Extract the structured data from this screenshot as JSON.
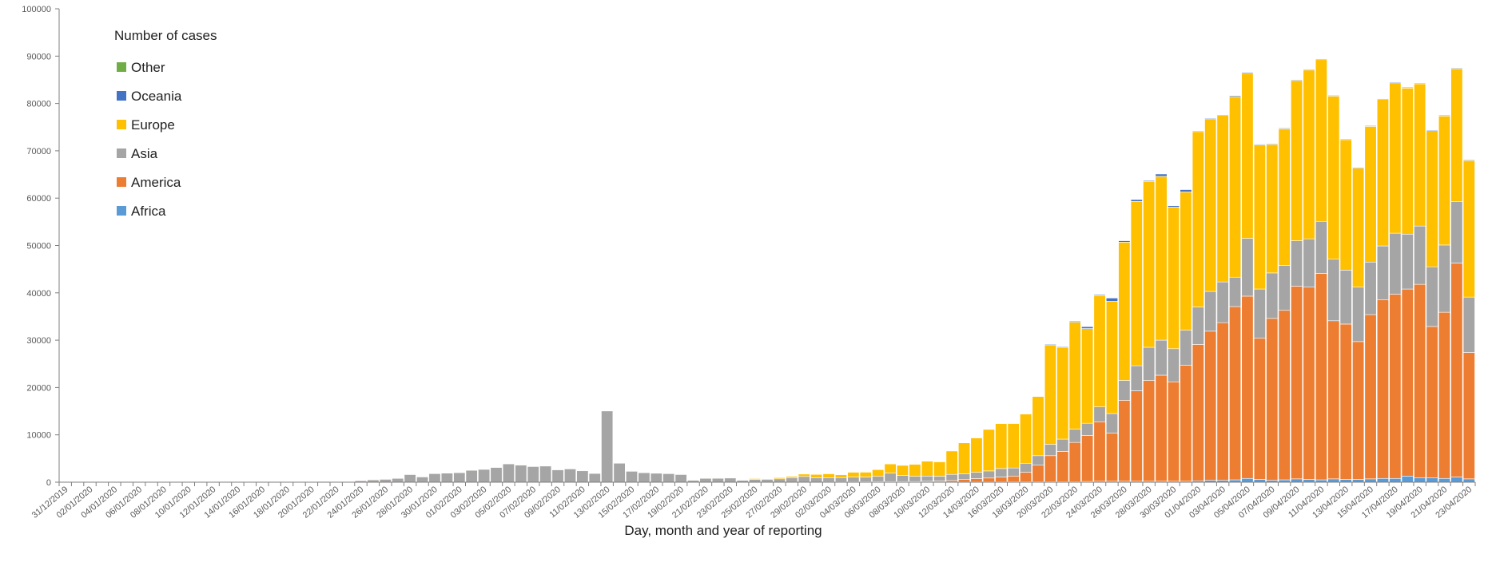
{
  "chart_data": {
    "type": "bar",
    "stacked": true,
    "title": "",
    "xlabel": "Day, month and year of reporting",
    "ylabel": "",
    "ylim": [
      0,
      100000
    ],
    "yticks": [
      0,
      10000,
      20000,
      30000,
      40000,
      50000,
      60000,
      70000,
      80000,
      90000,
      100000
    ],
    "grid": false,
    "legend": {
      "title": "Number of cases",
      "placement": "top-left",
      "order": [
        "Other",
        "Oceania",
        "Europe",
        "Asia",
        "America",
        "Africa"
      ]
    },
    "tick_every": 2,
    "categories": [
      "31/12/2019",
      "01/01/2020",
      "02/01/2020",
      "03/01/2020",
      "04/01/2020",
      "05/01/2020",
      "06/01/2020",
      "07/01/2020",
      "08/01/2020",
      "09/01/2020",
      "10/01/2020",
      "11/01/2020",
      "12/01/2020",
      "13/01/2020",
      "14/01/2020",
      "15/01/2020",
      "16/01/2020",
      "17/01/2020",
      "18/01/2020",
      "19/01/2020",
      "20/01/2020",
      "21/01/2020",
      "22/01/2020",
      "23/01/2020",
      "24/01/2020",
      "25/01/2020",
      "26/01/2020",
      "27/01/2020",
      "28/01/2020",
      "29/01/2020",
      "30/01/2020",
      "31/01/2020",
      "01/02/2020",
      "02/02/2020",
      "03/02/2020",
      "04/02/2020",
      "05/02/2020",
      "06/02/2020",
      "07/02/2020",
      "08/02/2020",
      "09/02/2020",
      "10/02/2020",
      "11/02/2020",
      "12/02/2020",
      "13/02/2020",
      "14/02/2020",
      "15/02/2020",
      "16/02/2020",
      "17/02/2020",
      "18/02/2020",
      "19/02/2020",
      "20/02/2020",
      "21/02/2020",
      "22/02/2020",
      "23/02/2020",
      "24/02/2020",
      "25/02/2020",
      "26/02/2020",
      "27/02/2020",
      "28/02/2020",
      "29/02/2020",
      "01/03/2020",
      "02/03/2020",
      "03/03/2020",
      "04/03/2020",
      "05/03/2020",
      "06/03/2020",
      "07/03/2020",
      "08/03/2020",
      "09/03/2020",
      "10/03/2020",
      "11/03/2020",
      "12/03/2020",
      "13/03/2020",
      "14/03/2020",
      "15/03/2020",
      "16/03/2020",
      "17/03/2020",
      "18/03/2020",
      "19/03/2020",
      "20/03/2020",
      "21/03/2020",
      "22/03/2020",
      "23/03/2020",
      "24/03/2020",
      "25/03/2020",
      "26/03/2020",
      "27/03/2020",
      "28/03/2020",
      "29/03/2020",
      "30/03/2020",
      "31/03/2020",
      "01/04/2020",
      "02/04/2020",
      "03/04/2020",
      "04/04/2020",
      "05/04/2020",
      "06/04/2020",
      "07/04/2020",
      "08/04/2020",
      "09/04/2020",
      "10/04/2020",
      "11/04/2020",
      "12/04/2020",
      "13/04/2020",
      "14/04/2020",
      "15/04/2020",
      "16/04/2020",
      "17/04/2020",
      "18/04/2020",
      "19/04/2020",
      "20/04/2020",
      "21/04/2020",
      "22/04/2020",
      "23/04/2020"
    ],
    "series": [
      {
        "name": "Africa",
        "color": "#5b9bd5",
        "values": [
          0,
          0,
          0,
          0,
          0,
          0,
          0,
          0,
          0,
          0,
          0,
          0,
          0,
          0,
          0,
          0,
          0,
          0,
          0,
          0,
          0,
          0,
          0,
          0,
          0,
          0,
          0,
          0,
          0,
          0,
          0,
          0,
          0,
          0,
          0,
          0,
          0,
          0,
          0,
          0,
          0,
          0,
          0,
          0,
          0,
          1,
          0,
          0,
          0,
          0,
          0,
          0,
          0,
          0,
          0,
          0,
          0,
          0,
          0,
          0,
          0,
          10,
          10,
          20,
          20,
          20,
          30,
          30,
          30,
          40,
          50,
          60,
          50,
          60,
          80,
          80,
          90,
          100,
          100,
          100,
          100,
          100,
          100,
          150,
          200,
          200,
          200,
          200,
          200,
          200,
          200,
          200,
          300,
          400,
          400,
          500,
          800,
          600,
          400,
          500,
          700,
          600,
          500,
          700,
          600,
          600,
          700,
          800,
          800,
          1300,
          900,
          900,
          800,
          1100,
          700
        ]
      },
      {
        "name": "America",
        "color": "#ed7d31",
        "values": [
          0,
          0,
          0,
          0,
          0,
          0,
          0,
          0,
          0,
          0,
          0,
          0,
          0,
          0,
          0,
          0,
          0,
          0,
          0,
          0,
          0,
          1,
          0,
          0,
          1,
          1,
          1,
          0,
          0,
          0,
          0,
          2,
          0,
          0,
          0,
          0,
          0,
          0,
          0,
          0,
          0,
          0,
          0,
          0,
          0,
          0,
          0,
          0,
          0,
          0,
          0,
          0,
          0,
          0,
          0,
          0,
          5,
          10,
          10,
          10,
          10,
          30,
          50,
          50,
          60,
          80,
          100,
          100,
          100,
          100,
          150,
          200,
          300,
          500,
          700,
          800,
          1000,
          1200,
          2000,
          3500,
          5500,
          6400,
          8300,
          9700,
          12500,
          10200,
          17100,
          19100,
          21300,
          22400,
          21000,
          24500,
          28800,
          31500,
          33300,
          36600,
          38500,
          29800,
          34200,
          35800,
          40700,
          40600,
          43600,
          33400,
          32800,
          29100,
          34700,
          37700,
          38900,
          39500,
          40900,
          32000,
          35100,
          45200,
          26700
        ]
      },
      {
        "name": "Asia",
        "color": "#a5a5a5",
        "values": [
          27,
          0,
          0,
          17,
          0,
          15,
          0,
          0,
          0,
          0,
          0,
          0,
          0,
          0,
          0,
          0,
          0,
          4,
          17,
          136,
          20,
          151,
          140,
          97,
          400,
          600,
          700,
          800,
          1700,
          1200,
          1900,
          2000,
          2100,
          2600,
          2800,
          3200,
          3900,
          3700,
          3300,
          3500,
          2600,
          2900,
          2500,
          1900,
          15100,
          4100,
          2400,
          2000,
          1900,
          1900,
          1700,
          500,
          900,
          900,
          900,
          400,
          600,
          600,
          700,
          900,
          1200,
          900,
          900,
          900,
          1000,
          1000,
          1100,
          1800,
          1300,
          1100,
          1100,
          1000,
          1300,
          1200,
          1300,
          1500,
          1800,
          1700,
          1900,
          2000,
          2400,
          2600,
          2800,
          2600,
          3200,
          4100,
          4200,
          5300,
          7000,
          7400,
          7000,
          7400,
          7900,
          8400,
          8600,
          6200,
          12200,
          10400,
          9600,
          9500,
          9600,
          10200,
          11000,
          13000,
          11400,
          11500,
          11100,
          11400,
          12900,
          11600,
          12300,
          12600,
          14200,
          13000,
          11700
        ]
      },
      {
        "name": "Europe",
        "color": "#ffc000",
        "values": [
          0,
          0,
          0,
          0,
          0,
          0,
          0,
          0,
          0,
          0,
          0,
          0,
          0,
          0,
          0,
          0,
          0,
          0,
          0,
          0,
          0,
          0,
          0,
          0,
          2,
          1,
          0,
          0,
          4,
          0,
          2,
          6,
          0,
          3,
          1,
          2,
          0,
          1,
          0,
          3,
          0,
          1,
          3,
          0,
          0,
          4,
          1,
          0,
          0,
          1,
          0,
          1,
          3,
          20,
          75,
          100,
          200,
          200,
          300,
          400,
          600,
          800,
          900,
          700,
          1100,
          1100,
          1500,
          2000,
          2200,
          2600,
          3200,
          3100,
          5000,
          6600,
          7300,
          8800,
          9500,
          9400,
          10400,
          12500,
          21000,
          19400,
          22600,
          20000,
          23500,
          23700,
          29200,
          34700,
          35000,
          34600,
          29900,
          29200,
          37050,
          36450,
          35150,
          38150,
          34850,
          30450,
          27150,
          28850,
          33850,
          35650,
          34150,
          34450,
          27550,
          25150,
          28650,
          30950,
          31750,
          30850,
          30050,
          28750,
          27250,
          28050,
          28850
        ]
      },
      {
        "name": "Oceania",
        "color": "#4472c4",
        "values": [
          0,
          0,
          0,
          0,
          0,
          0,
          0,
          0,
          0,
          0,
          0,
          0,
          0,
          0,
          0,
          0,
          0,
          0,
          0,
          0,
          0,
          0,
          0,
          0,
          0,
          3,
          1,
          0,
          0,
          1,
          0,
          2,
          3,
          0,
          0,
          0,
          0,
          0,
          0,
          0,
          0,
          0,
          0,
          0,
          0,
          0,
          0,
          0,
          0,
          0,
          0,
          0,
          0,
          0,
          0,
          0,
          0,
          0,
          0,
          0,
          2,
          5,
          5,
          5,
          10,
          10,
          20,
          20,
          20,
          30,
          30,
          30,
          40,
          50,
          60,
          70,
          80,
          100,
          100,
          100,
          150,
          150,
          200,
          400,
          200,
          700,
          300,
          400,
          200,
          500,
          300,
          500,
          150,
          150,
          150,
          200,
          200,
          150,
          150,
          150,
          150,
          150,
          150,
          150,
          150,
          150,
          150,
          150,
          150,
          150,
          150,
          150,
          150,
          150,
          150
        ]
      },
      {
        "name": "Other",
        "color": "#70ad47",
        "values": [
          0,
          0,
          0,
          0,
          0,
          0,
          0,
          0,
          0,
          0,
          0,
          0,
          0,
          0,
          0,
          0,
          0,
          0,
          0,
          0,
          0,
          0,
          0,
          0,
          0,
          0,
          0,
          0,
          0,
          0,
          0,
          0,
          0,
          0,
          0,
          0,
          60,
          70,
          0,
          0,
          0,
          100,
          30,
          40,
          40,
          70,
          100,
          100,
          90,
          80,
          13,
          60,
          20,
          30,
          60,
          20,
          60,
          10,
          50,
          20,
          0,
          0,
          0,
          0,
          0,
          0,
          0,
          0,
          0,
          0,
          0,
          0,
          0,
          0,
          0,
          0,
          0,
          0,
          0,
          0,
          0,
          0,
          0,
          0,
          0,
          0,
          0,
          0,
          0,
          0,
          0,
          0,
          0,
          0,
          0,
          0,
          0,
          0,
          0,
          0,
          0,
          0,
          0,
          0,
          0,
          0,
          0,
          0,
          0,
          0,
          0,
          0,
          0,
          0,
          0
        ]
      }
    ]
  }
}
